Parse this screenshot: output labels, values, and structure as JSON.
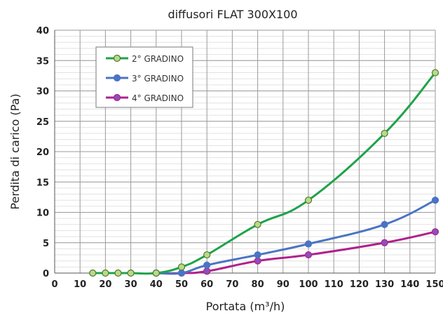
{
  "chart_data": {
    "type": "line",
    "title": "diffusori FLAT 300X100",
    "xlabel": "Portata (m³/h)",
    "ylabel": "Perdita di carico (Pa)",
    "xlim": [
      0,
      150
    ],
    "ylim": [
      0,
      40
    ],
    "x_ticks": [
      0,
      10,
      20,
      30,
      40,
      50,
      60,
      70,
      80,
      90,
      100,
      110,
      120,
      130,
      140,
      150
    ],
    "y_ticks": [
      0,
      5,
      10,
      15,
      20,
      25,
      30,
      35,
      40
    ],
    "grid": true,
    "legend_position": "top-left",
    "series": [
      {
        "name": "2° GRADINO",
        "color": "#1fa34a",
        "marker_fill": "#b9d98a",
        "points": [
          [
            15,
            0
          ],
          [
            20,
            0
          ],
          [
            25,
            0
          ],
          [
            30,
            0
          ],
          [
            40,
            0
          ],
          [
            50,
            1
          ],
          [
            60,
            3
          ],
          [
            80,
            8
          ],
          [
            100,
            12
          ],
          [
            130,
            23
          ],
          [
            150,
            33
          ]
        ]
      },
      {
        "name": "3° GRADINO",
        "color": "#4a74c4",
        "marker_fill": "#4a74c4",
        "points": [
          [
            40,
            0
          ],
          [
            50,
            0
          ],
          [
            60,
            1.3
          ],
          [
            80,
            3
          ],
          [
            100,
            4.8
          ],
          [
            130,
            8
          ],
          [
            150,
            12
          ]
        ]
      },
      {
        "name": "4° GRADINO",
        "color": "#b0208c",
        "marker_fill": "#8d4fb8",
        "points": [
          [
            40,
            0
          ],
          [
            50,
            0
          ],
          [
            60,
            0.3
          ],
          [
            80,
            2
          ],
          [
            100,
            3
          ],
          [
            130,
            5
          ],
          [
            150,
            6.8
          ]
        ]
      }
    ]
  }
}
